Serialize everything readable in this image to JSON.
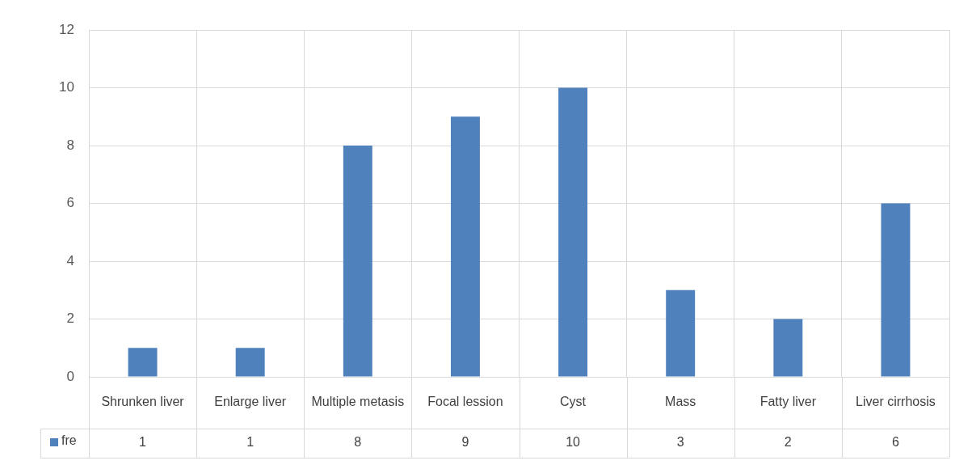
{
  "chart_data": {
    "type": "bar",
    "categories": [
      "Shrunken liver",
      "Enlarge liver",
      "Multiple metasis",
      "Focal lession",
      "Cyst",
      "Mass",
      "Fatty liver",
      "Liver cirrhosis"
    ],
    "series": [
      {
        "name": "fre",
        "color": "#4f81bd",
        "values": [
          1,
          1,
          8,
          9,
          10,
          3,
          2,
          6
        ]
      }
    ],
    "ylim": [
      0,
      12
    ],
    "yticks": [
      0,
      2,
      4,
      6,
      8,
      10,
      12
    ],
    "grid": true,
    "legend": "bottom",
    "data_labels": true
  }
}
